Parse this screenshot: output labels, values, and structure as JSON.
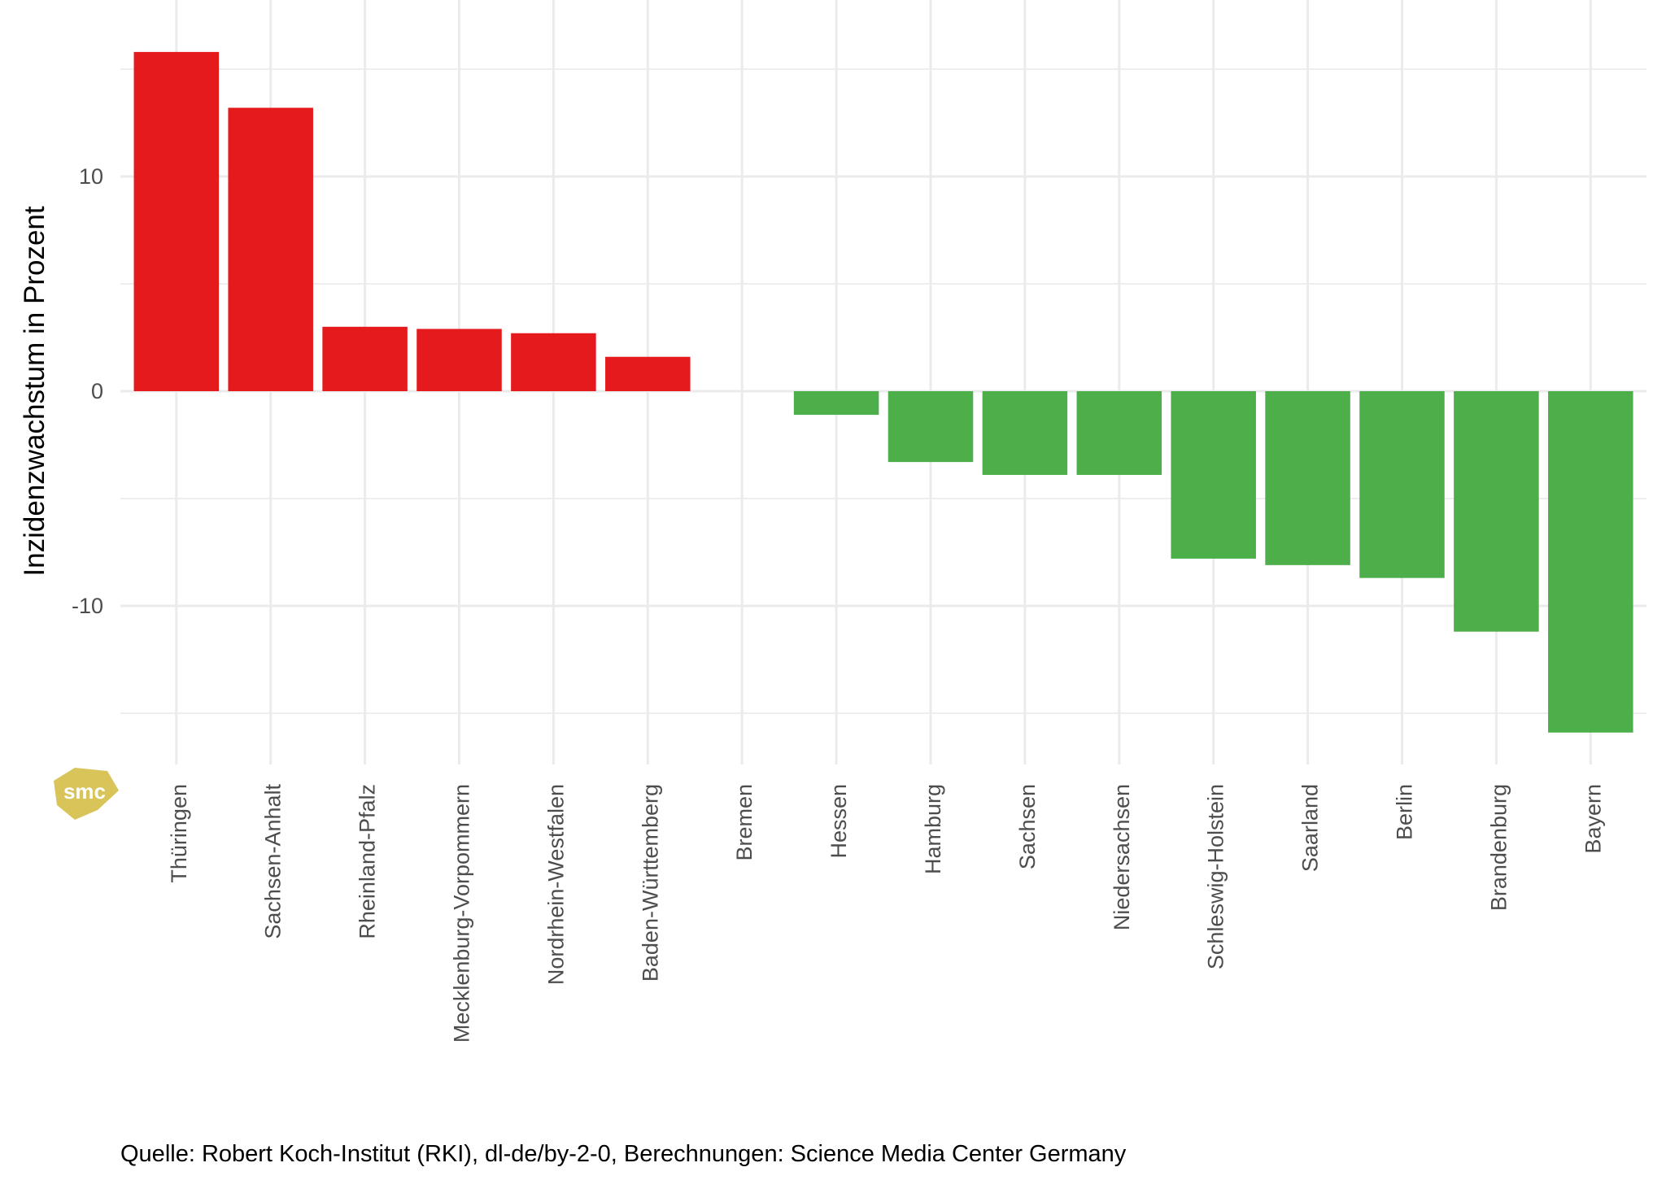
{
  "chart_data": {
    "type": "bar",
    "title": "",
    "xlabel": "",
    "ylabel": "Inzidenzwachstum in Prozent",
    "ylim": [
      -17.5,
      17.8
    ],
    "yticks": [
      -10,
      0,
      10
    ],
    "ytick_labels": [
      "-10",
      "0",
      "10"
    ],
    "grid": true,
    "categories": [
      "Thüringen",
      "Sachsen-Anhalt",
      "Rheinland-Pfalz",
      "Mecklenburg-Vorpommern",
      "Nordrhein-Westfalen",
      "Baden-Württemberg",
      "Bremen",
      "Hessen",
      "Hamburg",
      "Sachsen",
      "Niedersachsen",
      "Schleswig-Holstein",
      "Saarland",
      "Berlin",
      "Brandenburg",
      "Bayern"
    ],
    "values": [
      15.8,
      13.2,
      3.0,
      2.9,
      2.7,
      1.6,
      0.0,
      -1.1,
      -3.3,
      -3.9,
      -3.9,
      -7.8,
      -8.1,
      -8.7,
      -11.2,
      -15.9
    ],
    "colors": {
      "positive": "#e41a1c",
      "negative": "#4daf4a"
    },
    "caption": "Quelle: Robert Koch-Institut (RKI), dl-de/by-2-0, Berechnungen: Science Media Center Germany",
    "logo_text": "smc"
  }
}
